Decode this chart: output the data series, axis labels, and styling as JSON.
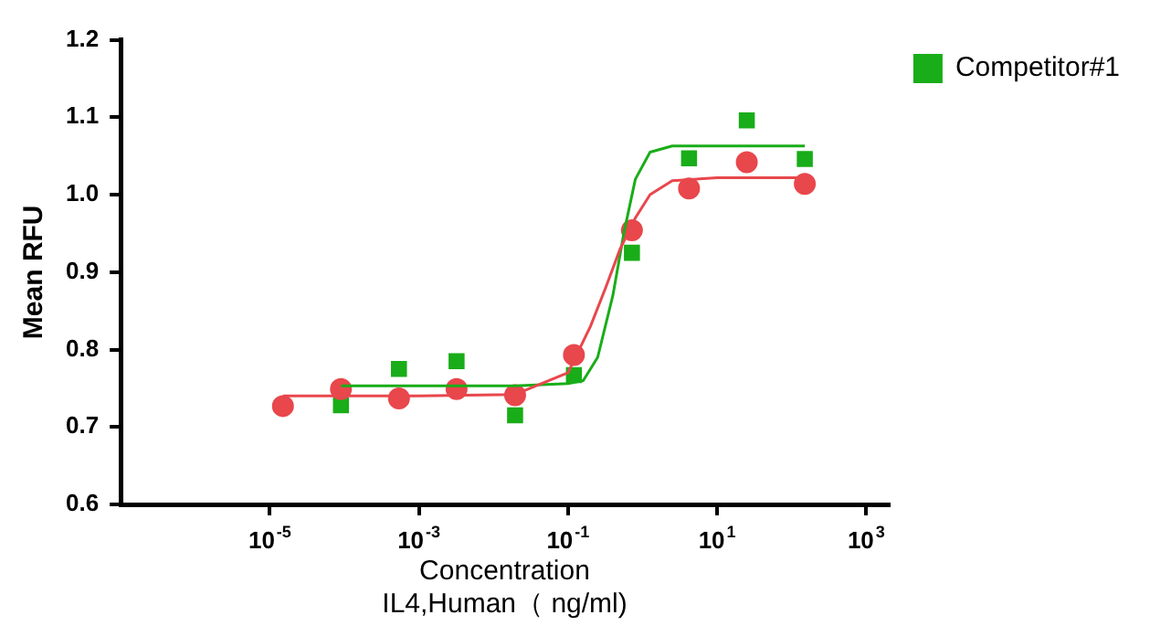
{
  "chart_data": {
    "type": "scatter",
    "xlabel": "Concentration\nIL4,Human（ ng/ml)",
    "ylabel": "Mean RFU",
    "log": "x",
    "grid": false,
    "legend": "top right",
    "xlim": [
      1e-07,
      2000
    ],
    "xticks": [
      {
        "value": 1e-05,
        "label": "10$^{-5}$"
      },
      {
        "value": 0.001,
        "label": "10$^{-3}$"
      },
      {
        "value": 0.1,
        "label": "10$^{-1}$"
      },
      {
        "value": 10,
        "label": "10$^{1}$"
      },
      {
        "value": 1000,
        "label": "10$^{3}$"
      }
    ],
    "ylim": [
      0.6,
      1.2
    ],
    "yticks": [
      {
        "value": 0.6,
        "label": "0.6"
      },
      {
        "value": 0.7,
        "label": "0.7"
      },
      {
        "value": 0.8,
        "label": "0.8"
      },
      {
        "value": 0.9,
        "label": "0.9"
      },
      {
        "value": 1,
        "label": "1.0"
      },
      {
        "value": 1.1,
        "label": "1.1"
      },
      {
        "value": 1.2,
        "label": "1.2"
      }
    ],
    "series": [
      {
        "type": "scatter",
        "color": "#e8474c",
        "marker": "circle",
        "x": [
          1.5e-05,
          9e-05,
          0.00054,
          0.0032,
          0.0195,
          0.12,
          0.72,
          4.2,
          25,
          150
        ],
        "values": [
          0.727,
          0.749,
          0.737,
          0.749,
          0.741,
          0.793,
          0.954,
          1.008,
          1.042,
          1.014
        ]
      },
      {
        "type": "scatter",
        "name": "Competitor#1",
        "color": "#19ad19",
        "marker": "square",
        "x": [
          9e-05,
          0.00054,
          0.0032,
          0.0195,
          0.12,
          0.72,
          4.2,
          25,
          150
        ],
        "values": [
          0.728,
          0.775,
          0.785,
          0.715,
          0.767,
          0.925,
          1.047,
          1.096,
          1.046
        ]
      },
      {
        "type": "line",
        "color": "#e8474c",
        "marker": "none",
        "x": [
          1.5e-05,
          0.001,
          0.0195,
          0.1,
          0.2,
          0.32,
          0.5,
          0.8,
          1.26,
          2.5,
          10,
          150
        ],
        "values": [
          0.74,
          0.74,
          0.742,
          0.77,
          0.83,
          0.88,
          0.93,
          0.97,
          1.0,
          1.018,
          1.022,
          1.022
        ]
      },
      {
        "type": "line",
        "color": "#19ad19",
        "marker": "none",
        "x": [
          9e-05,
          0.001,
          0.0195,
          0.1,
          0.16,
          0.25,
          0.4,
          0.56,
          0.8,
          1.26,
          2.5,
          10,
          150
        ],
        "values": [
          0.753,
          0.753,
          0.753,
          0.756,
          0.76,
          0.79,
          0.87,
          0.95,
          1.02,
          1.055,
          1.063,
          1.063,
          1.063
        ]
      }
    ]
  }
}
